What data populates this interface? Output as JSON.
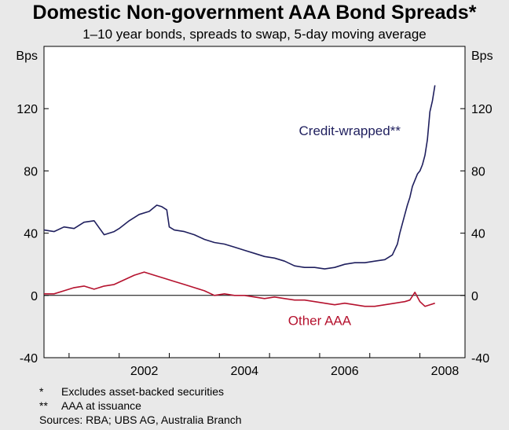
{
  "chart_data": {
    "type": "line",
    "title": "Domestic Non-government AAA Bond Spreads*",
    "subtitle": "1–10 year bonds, spreads to swap, 5-day moving average",
    "ylabel_left": "Bps",
    "ylabel_right": "Bps",
    "ylim": [
      -40,
      160
    ],
    "yticks": [
      -40,
      0,
      40,
      80,
      120
    ],
    "xlim": [
      2000.5,
      2008.9
    ],
    "xticks": [
      2002,
      2004,
      2006,
      2008
    ],
    "xtick_labels": [
      "2002",
      "2004",
      "2006",
      "2008"
    ],
    "series": [
      {
        "name": "Credit-wrapped**",
        "color": "#1f1f5e",
        "x": [
          2000.5,
          2000.7,
          2000.9,
          2001.1,
          2001.3,
          2001.5,
          2001.7,
          2001.9,
          2002.0,
          2002.2,
          2002.4,
          2002.6,
          2002.75,
          2002.85,
          2002.95,
          2003.0,
          2003.1,
          2003.3,
          2003.5,
          2003.7,
          2003.9,
          2004.1,
          2004.3,
          2004.5,
          2004.7,
          2004.9,
          2005.1,
          2005.3,
          2005.5,
          2005.7,
          2005.9,
          2006.1,
          2006.3,
          2006.5,
          2006.7,
          2006.9,
          2007.1,
          2007.3,
          2007.45,
          2007.55,
          2007.6,
          2007.65,
          2007.7,
          2007.75,
          2007.8,
          2007.85,
          2007.9,
          2007.95,
          2008.0,
          2008.05,
          2008.1,
          2008.15,
          2008.2,
          2008.25,
          2008.3
        ],
        "y": [
          42,
          41,
          44,
          43,
          47,
          48,
          39,
          41,
          43,
          48,
          52,
          54,
          58,
          57,
          55,
          44,
          42,
          41,
          39,
          36,
          34,
          33,
          31,
          29,
          27,
          25,
          24,
          22,
          19,
          18,
          18,
          17,
          18,
          20,
          21,
          21,
          22,
          23,
          26,
          33,
          40,
          46,
          52,
          58,
          63,
          70,
          74,
          78,
          80,
          84,
          90,
          100,
          118,
          125,
          135
        ]
      },
      {
        "name": "Other AAA",
        "color": "#b5122e",
        "x": [
          2000.5,
          2000.7,
          2000.9,
          2001.1,
          2001.3,
          2001.5,
          2001.7,
          2001.9,
          2002.1,
          2002.3,
          2002.5,
          2002.7,
          2002.9,
          2003.1,
          2003.3,
          2003.5,
          2003.7,
          2003.9,
          2004.1,
          2004.3,
          2004.5,
          2004.7,
          2004.9,
          2005.1,
          2005.3,
          2005.5,
          2005.7,
          2005.9,
          2006.1,
          2006.3,
          2006.5,
          2006.7,
          2006.9,
          2007.1,
          2007.3,
          2007.5,
          2007.7,
          2007.8,
          2007.9,
          2007.95,
          2008.0,
          2008.1,
          2008.2,
          2008.3
        ],
        "y": [
          1,
          1,
          3,
          5,
          6,
          4,
          6,
          7,
          10,
          13,
          15,
          13,
          11,
          9,
          7,
          5,
          3,
          0,
          1,
          0,
          0,
          -1,
          -2,
          -1,
          -2,
          -3,
          -3,
          -4,
          -5,
          -6,
          -5,
          -6,
          -7,
          -7,
          -6,
          -5,
          -4,
          -3,
          2,
          -1,
          -4,
          -7,
          -6,
          -5
        ]
      }
    ],
    "annotations": [
      {
        "text": "Credit-wrapped**",
        "x": 2006.6,
        "y": 103,
        "color": "#1f1f5e"
      },
      {
        "text": "Other AAA",
        "x": 2006.0,
        "y": -19,
        "color": "#b5122e"
      }
    ]
  },
  "footnotes": [
    {
      "mark": "*",
      "text": "Excludes asset-backed securities"
    },
    {
      "mark": "**",
      "text": "AAA at issuance"
    }
  ],
  "sources": "Sources: RBA; UBS AG, Australia Branch"
}
